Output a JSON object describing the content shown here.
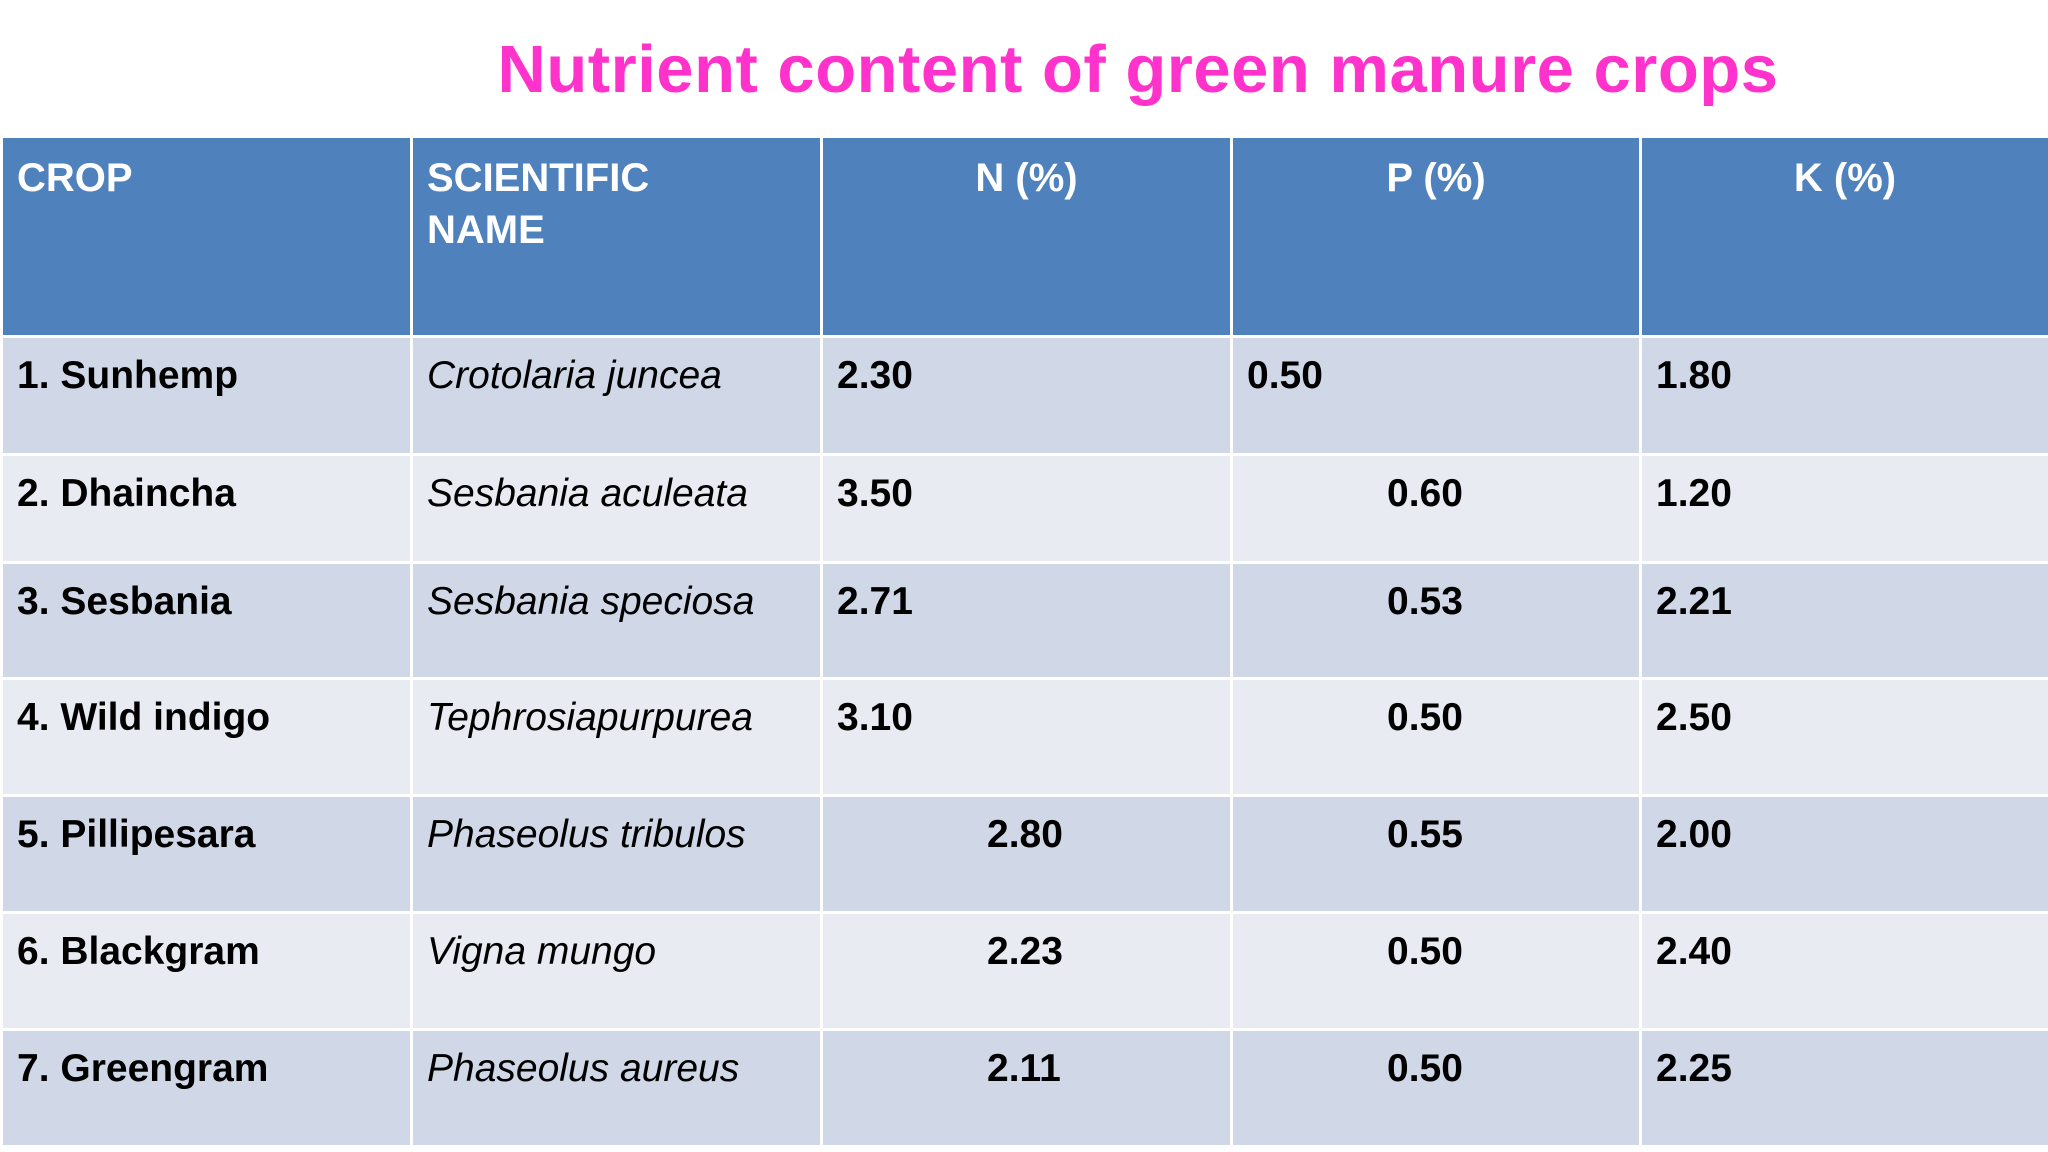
{
  "title": "Nutrient content of green manure crops",
  "colors": {
    "title": "#ff33cc",
    "header_bg": "#4f81bd",
    "row_dark": "#d0d8e8",
    "row_light": "#e9ebf3"
  },
  "table": {
    "headers": [
      "CROP",
      "SCIENTIFIC NAME",
      "N (%)",
      "P (%)",
      "K (%)"
    ],
    "rows": [
      {
        "crop": "1. Sunhemp",
        "scientific": "Crotolaria juncea",
        "n": "2.30",
        "p": "0.50",
        "k": "1.80"
      },
      {
        "crop": "2. Dhaincha",
        "scientific": "Sesbania aculeata",
        "n": "3.50",
        "p": "0.60",
        "k": "1.20"
      },
      {
        "crop": "3. Sesbania",
        "scientific": "Sesbania speciosa",
        "n": "2.71",
        "p": "0.53",
        "k": "2.21"
      },
      {
        "crop": "4. Wild indigo",
        "scientific": "Tephrosiapurpurea",
        "n": "3.10",
        "p": "0.50",
        "k": "2.50"
      },
      {
        "crop": "5. Pillipesara",
        "scientific": "Phaseolus tribulos",
        "n": "2.80",
        "p": "0.55",
        "k": "2.00"
      },
      {
        "crop": "6. Blackgram",
        "scientific": "Vigna mungo",
        "n": "2.23",
        "p": "0.50",
        "k": "2.40"
      },
      {
        "crop": "7. Greengram",
        "scientific": "Phaseolus aureus",
        "n": "2.11",
        "p": "0.50",
        "k": "2.25"
      }
    ]
  }
}
